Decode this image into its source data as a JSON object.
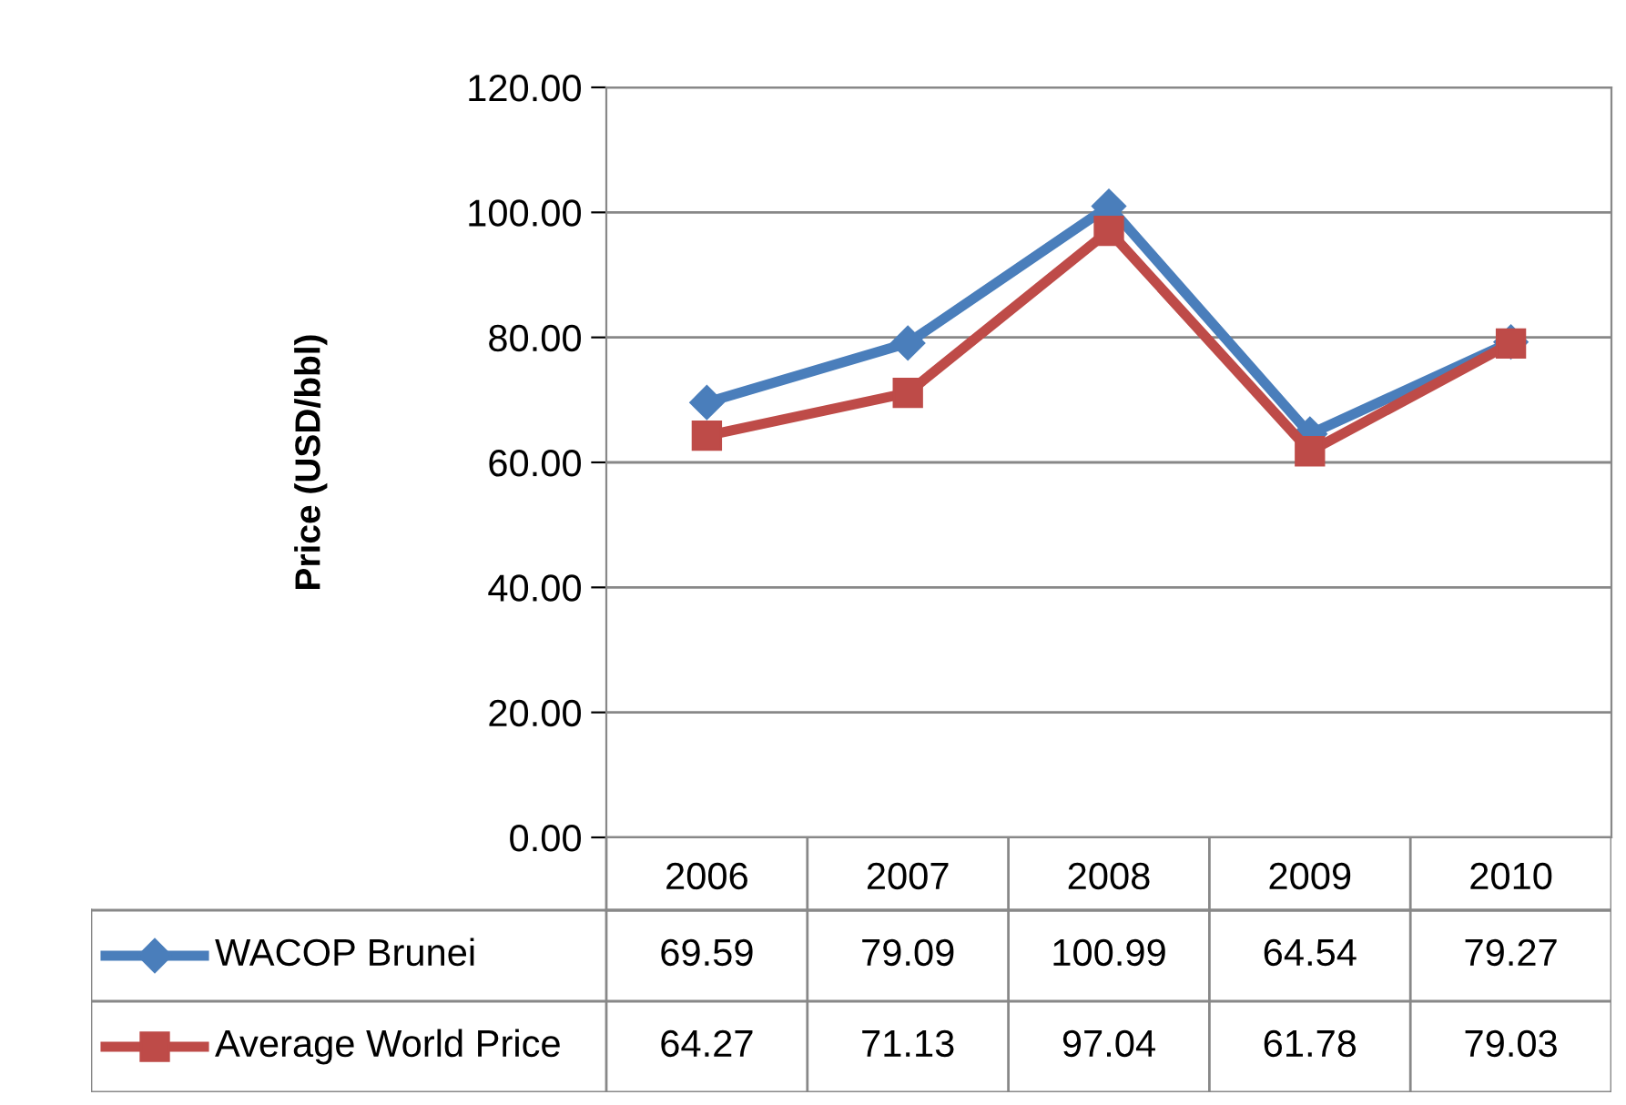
{
  "chart_data": {
    "type": "line",
    "ylabel": "Price (USD/bbl)",
    "categories": [
      "2006",
      "2007",
      "2008",
      "2009",
      "2010"
    ],
    "series": [
      {
        "name": "WACOP Brunei",
        "color": "#4a7ebb",
        "marker": "diamond",
        "values": [
          69.59,
          79.09,
          100.99,
          64.54,
          79.27
        ]
      },
      {
        "name": "Average World Price",
        "color": "#be4b48",
        "marker": "square",
        "values": [
          64.27,
          71.13,
          97.04,
          61.78,
          79.03
        ]
      }
    ],
    "ylim": [
      0,
      120
    ],
    "yticks": [
      {
        "value": 0,
        "label": "0.00"
      },
      {
        "value": 20,
        "label": "20.00"
      },
      {
        "value": 40,
        "label": "40.00"
      },
      {
        "value": 60,
        "label": "60.00"
      },
      {
        "value": 80,
        "label": "80.00"
      },
      {
        "value": 100,
        "label": "100.00"
      },
      {
        "value": 120,
        "label": "120.00"
      }
    ],
    "grid": "y",
    "legend": "bottom",
    "data_labels": true
  }
}
